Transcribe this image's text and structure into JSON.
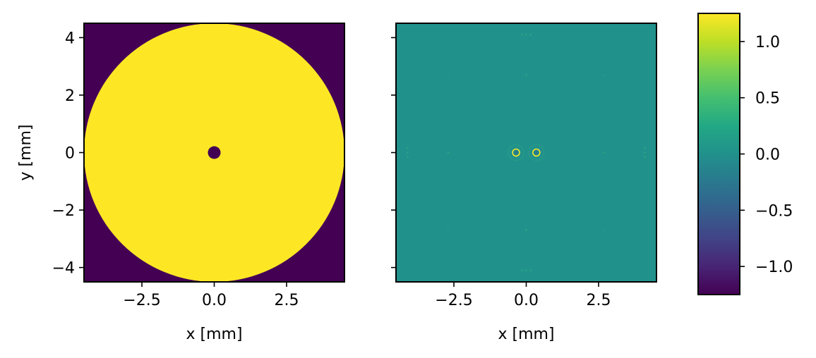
{
  "chart_data": [
    {
      "type": "heatmap",
      "panel": "left",
      "description_values": "circular aperture with central obscuration",
      "xlabel": "x [mm]",
      "ylabel": "y [mm]",
      "xlim": [
        -4.5,
        4.5
      ],
      "ylim": [
        -4.5,
        4.5
      ],
      "xticks": [
        -2.5,
        0.0,
        2.5
      ],
      "xtick_labels": [
        "−2.5",
        "0.0",
        "2.5"
      ],
      "yticks": [
        -4,
        -2,
        0,
        2,
        4
      ],
      "ytick_labels": [
        "−4",
        "−2",
        "0",
        "2",
        "4"
      ],
      "background_value": -1.25,
      "shapes": [
        {
          "kind": "disk",
          "cx": 0.0,
          "cy": 0.0,
          "r": 4.5,
          "value": 1.25
        },
        {
          "kind": "disk",
          "cx": 0.0,
          "cy": 0.0,
          "r": 0.22,
          "value": -1.25
        }
      ],
      "grid": false
    },
    {
      "type": "heatmap",
      "panel": "right",
      "xlabel": "x [mm]",
      "ylabel": "",
      "xlim": [
        -4.5,
        4.5
      ],
      "ylim": [
        -4.5,
        4.5
      ],
      "xticks": [
        -2.5,
        0.0,
        2.5
      ],
      "xtick_labels": [
        "−2.5",
        "0.0",
        "2.5"
      ],
      "yticks": [
        -4,
        -2,
        0,
        2,
        4
      ],
      "ytick_labels": [],
      "background_value": 0.0,
      "points": [
        {
          "x": -0.35,
          "y": 0.0,
          "value": 1.0
        },
        {
          "x": 0.35,
          "y": 0.0,
          "value": 1.0
        },
        {
          "x": -2.7,
          "y": 0.0,
          "value": 0.3
        },
        {
          "x": 2.7,
          "y": 0.0,
          "value": 0.3
        },
        {
          "x": 0.0,
          "y": 2.7,
          "value": 0.3
        },
        {
          "x": 0.0,
          "y": -2.7,
          "value": 0.3
        },
        {
          "x": 0.0,
          "y": 4.1,
          "value": 0.3
        },
        {
          "x": 0.0,
          "y": -4.1,
          "value": 0.3
        },
        {
          "x": -4.1,
          "y": 0.0,
          "value": 0.3
        },
        {
          "x": 4.1,
          "y": 0.0,
          "value": 0.3
        },
        {
          "x": -2.7,
          "y": 2.7,
          "value": 0.2
        },
        {
          "x": 2.7,
          "y": 2.7,
          "value": 0.2
        },
        {
          "x": -2.7,
          "y": -2.7,
          "value": 0.2
        },
        {
          "x": 2.7,
          "y": -2.7,
          "value": 0.2
        }
      ],
      "grid": false
    }
  ],
  "colorbar": {
    "colormap": "viridis",
    "range": [
      -1.25,
      1.25
    ],
    "ticks": [
      1.0,
      0.5,
      0.0,
      -0.5,
      -1.0
    ],
    "tick_labels": [
      "1.0",
      "0.5",
      "0.0",
      "−0.5",
      "−1.0"
    ]
  },
  "colors": {
    "viridis_low": "#440154",
    "viridis_high": "#fde725",
    "viridis_mid": "#21918c"
  }
}
